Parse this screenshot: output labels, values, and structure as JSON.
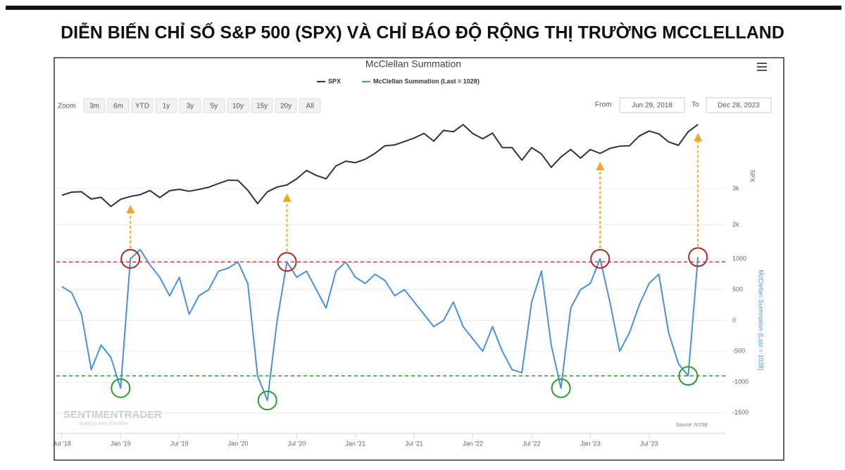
{
  "headline": "DIỄN BIẾN CHỈ SỐ S&P 500 (SPX) VÀ CHỈ BÁO ĐỘ RỘNG THỊ TRƯỜNG MCCLELLAND",
  "range_selector": {
    "label": "Zoom",
    "buttons": [
      "3m",
      "6m",
      "YTD",
      "1y",
      "3y",
      "5y",
      "10y",
      "15y",
      "20y",
      "All"
    ],
    "from_label": "From",
    "from": "Jun 29, 2018",
    "to_label": "To",
    "to": "Dec 28, 2023"
  },
  "watermark": {
    "name": "SENTIMENTRADER",
    "tagline": "Analysis over Emotion"
  },
  "source": "Source: NYSE",
  "chart_data": {
    "type": "line",
    "title": "McClellan Summation",
    "x": [
      "2018-07",
      "2018-08",
      "2018-09",
      "2018-10",
      "2018-11",
      "2018-12",
      "2019-01",
      "2019-02",
      "2019-03",
      "2019-04",
      "2019-05",
      "2019-06",
      "2019-07",
      "2019-08",
      "2019-09",
      "2019-10",
      "2019-11",
      "2019-12",
      "2020-01",
      "2020-02",
      "2020-03",
      "2020-04",
      "2020-05",
      "2020-06",
      "2020-07",
      "2020-08",
      "2020-09",
      "2020-10",
      "2020-11",
      "2020-12",
      "2021-01",
      "2021-02",
      "2021-03",
      "2021-04",
      "2021-05",
      "2021-06",
      "2021-07",
      "2021-08",
      "2021-09",
      "2021-10",
      "2021-11",
      "2021-12",
      "2022-01",
      "2022-02",
      "2022-03",
      "2022-04",
      "2022-05",
      "2022-06",
      "2022-07",
      "2022-08",
      "2022-09",
      "2022-10",
      "2022-11",
      "2022-12",
      "2023-01",
      "2023-02",
      "2023-03",
      "2023-04",
      "2023-05",
      "2023-06",
      "2023-07",
      "2023-08",
      "2023-09",
      "2023-10",
      "2023-11",
      "2023-12"
    ],
    "series": [
      {
        "name": "SPX",
        "color": "#333333",
        "axis": "y2",
        "values": [
          2816,
          2901,
          2914,
          2711,
          2760,
          2507,
          2704,
          2784,
          2834,
          2946,
          2752,
          2942,
          2980,
          2926,
          2977,
          3038,
          3141,
          3231,
          3226,
          2954,
          2585,
          2912,
          3044,
          3100,
          3271,
          3500,
          3363,
          3270,
          3622,
          3756,
          3714,
          3811,
          3973,
          4181,
          4204,
          4298,
          4395,
          4523,
          4308,
          4605,
          4567,
          4766,
          4516,
          4374,
          4530,
          4132,
          4132,
          3785,
          4130,
          3955,
          3586,
          3872,
          4080,
          3840,
          4077,
          3970,
          4109,
          4169,
          4180,
          4450,
          4589,
          4508,
          4288,
          4194,
          4568,
          4770
        ]
      },
      {
        "name": "McClellan Summation (Last = 1028)",
        "color": "#4a90e2",
        "axis": "y",
        "values": [
          550,
          450,
          100,
          -800,
          -400,
          -600,
          -1100,
          1000,
          1150,
          900,
          700,
          400,
          700,
          100,
          400,
          500,
          800,
          850,
          950,
          600,
          -900,
          -1300,
          0,
          950,
          700,
          800,
          500,
          200,
          800,
          950,
          700,
          600,
          750,
          650,
          400,
          500,
          300,
          100,
          -100,
          0,
          300,
          -100,
          -300,
          -500,
          -100,
          -500,
          -800,
          -850,
          300,
          800,
          -400,
          -1100,
          200,
          500,
          600,
          1000,
          300,
          -500,
          -200,
          250,
          600,
          750,
          -200,
          -700,
          -900,
          1028
        ]
      }
    ],
    "xlim": [
      "2018-06",
      "2024-02"
    ],
    "xticks": [
      {
        "value": "2018-07",
        "label": "Jul '18"
      },
      {
        "value": "2019-01",
        "label": "Jan '19"
      },
      {
        "value": "2019-07",
        "label": "Jul '19"
      },
      {
        "value": "2020-01",
        "label": "Jan '20"
      },
      {
        "value": "2020-07",
        "label": "Jul '20"
      },
      {
        "value": "2021-01",
        "label": "Jan '21"
      },
      {
        "value": "2021-07",
        "label": "Jul '21"
      },
      {
        "value": "2022-01",
        "label": "Jan '22"
      },
      {
        "value": "2022-07",
        "label": "Jul '22"
      },
      {
        "value": "2023-01",
        "label": "Jan '23"
      },
      {
        "value": "2023-07",
        "label": "Jul '23"
      }
    ],
    "ylim": [
      -1750,
      1250
    ],
    "yticks": [
      -1500,
      -1000,
      -500,
      0,
      500,
      1000
    ],
    "y_label": "McClellan Summation (Last = 1028)",
    "y2lim": [
      1700,
      5000
    ],
    "y2ticks": [
      {
        "value": 2000,
        "label": "2k"
      },
      {
        "value": 3000,
        "label": "3k"
      }
    ],
    "y2_label": "SPX",
    "grid": true,
    "reference_lines": [
      {
        "value": 950,
        "color": "#e53935"
      },
      {
        "value": -900,
        "color": "#2e9b2e"
      }
    ],
    "circles": [
      {
        "x": "2019-01",
        "value": -1100,
        "color": "#2e9b2e"
      },
      {
        "x": "2020-04",
        "value": -1300,
        "color": "#2e9b2e"
      },
      {
        "x": "2022-10",
        "value": -1100,
        "color": "#2e9b2e"
      },
      {
        "x": "2023-11",
        "value": -900,
        "color": "#2e9b2e"
      },
      {
        "x": "2019-02",
        "value": 1000,
        "color": "#a32a2a",
        "arrow": true
      },
      {
        "x": "2020-06",
        "value": 950,
        "color": "#a32a2a",
        "arrow": true
      },
      {
        "x": "2023-02",
        "value": 1000,
        "color": "#a32a2a",
        "arrow": true
      },
      {
        "x": "2023-12",
        "value": 1028,
        "color": "#a32a2a",
        "arrow": true
      }
    ],
    "arrow_color": "#f5a623"
  }
}
